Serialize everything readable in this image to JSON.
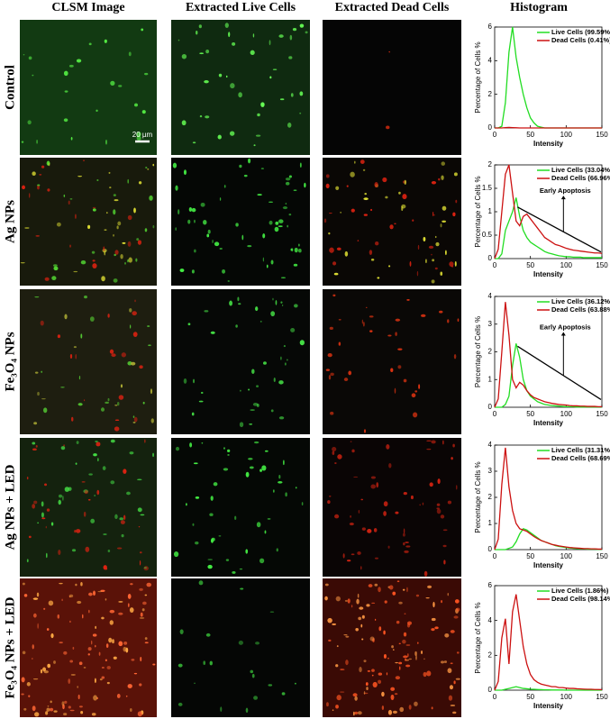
{
  "column_headers": [
    "CLSM Image",
    "Extracted Live Cells",
    "Extracted Dead Cells",
    "Histogram"
  ],
  "row_labels": [
    "Control",
    "Ag NPs",
    "Fe₃O₄ NPs",
    "Ag NPs + LED",
    "Fe₃O₄ NPs + LED"
  ],
  "scale_bar": "20 µm",
  "chart_data": [
    {
      "type": "line",
      "xlabel": "Intensity",
      "ylabel": "Percentage of Cells %",
      "x": [
        0,
        5,
        10,
        15,
        20,
        25,
        30,
        35,
        40,
        45,
        50,
        55,
        60,
        65,
        70,
        75,
        80,
        85,
        90,
        95,
        100,
        105,
        110,
        115,
        120,
        125,
        130,
        135,
        140,
        145,
        150
      ],
      "xlim": [
        0,
        150
      ],
      "xticks": [
        0,
        50,
        100,
        150
      ],
      "ylim": [
        0,
        6
      ],
      "yticks": [
        0,
        2,
        4,
        6
      ],
      "series": [
        {
          "name": "Live Cells (99.59%)",
          "color": "#22dd22",
          "values": [
            0,
            0,
            0.1,
            1.5,
            4.5,
            6,
            4.2,
            3,
            2,
            1.2,
            0.6,
            0.3,
            0.1,
            0.05,
            0,
            0,
            0,
            0,
            0,
            0,
            0,
            0,
            0,
            0,
            0,
            0,
            0,
            0,
            0,
            0,
            0
          ]
        },
        {
          "name": "Dead Cells (0.41%)",
          "color": "#cc1111",
          "values": [
            0,
            0,
            0,
            0.02,
            0.03,
            0.02,
            0.01,
            0,
            0,
            0,
            0,
            0,
            0,
            0,
            0,
            0,
            0,
            0,
            0,
            0,
            0,
            0,
            0,
            0,
            0,
            0,
            0,
            0,
            0,
            0,
            0
          ]
        }
      ]
    },
    {
      "type": "line",
      "xlabel": "Intensity",
      "ylabel": "Percentage of Cells %",
      "annotation": "Early Apoptosis",
      "x": [
        0,
        5,
        10,
        15,
        20,
        25,
        30,
        35,
        40,
        45,
        50,
        55,
        60,
        65,
        70,
        75,
        80,
        85,
        90,
        95,
        100,
        105,
        110,
        115,
        120,
        125,
        130,
        135,
        140,
        145,
        150
      ],
      "xlim": [
        0,
        150
      ],
      "xticks": [
        0,
        50,
        100,
        150
      ],
      "ylim": [
        0,
        2
      ],
      "yticks": [
        0,
        0.5,
        1,
        1.5,
        2
      ],
      "series": [
        {
          "name": "Live Cells (33.04%)",
          "color": "#22dd22",
          "values": [
            0,
            0,
            0.1,
            0.6,
            0.8,
            1.0,
            1.3,
            0.9,
            0.6,
            0.45,
            0.35,
            0.3,
            0.25,
            0.2,
            0.15,
            0.12,
            0.1,
            0.08,
            0.06,
            0.05,
            0.04,
            0.04,
            0.03,
            0.03,
            0.03,
            0.02,
            0.02,
            0.02,
            0.02,
            0.02,
            0.02
          ]
        },
        {
          "name": "Dead Cells (66.96%)",
          "color": "#cc1111",
          "values": [
            0,
            0.2,
            1.0,
            1.8,
            2.0,
            1.4,
            0.8,
            0.7,
            0.9,
            0.95,
            0.85,
            0.75,
            0.65,
            0.55,
            0.45,
            0.4,
            0.35,
            0.3,
            0.28,
            0.25,
            0.22,
            0.2,
            0.18,
            0.17,
            0.16,
            0.15,
            0.14,
            0.13,
            0.12,
            0.12,
            0.11
          ]
        }
      ]
    },
    {
      "type": "line",
      "xlabel": "Intensity",
      "ylabel": "Percentage of Cells %",
      "annotation": "Early Apoptosis",
      "x": [
        0,
        5,
        10,
        15,
        20,
        25,
        30,
        35,
        40,
        45,
        50,
        55,
        60,
        65,
        70,
        75,
        80,
        85,
        90,
        95,
        100,
        105,
        110,
        115,
        120,
        125,
        130,
        135,
        140,
        145,
        150
      ],
      "xlim": [
        0,
        150
      ],
      "xticks": [
        0,
        50,
        100,
        150
      ],
      "ylim": [
        0,
        4
      ],
      "yticks": [
        0,
        1,
        2,
        3,
        4
      ],
      "series": [
        {
          "name": "Live Cells (36.12%)",
          "color": "#22dd22",
          "values": [
            0,
            0,
            0,
            0.1,
            0.4,
            1.5,
            2.3,
            1.8,
            1.0,
            0.6,
            0.4,
            0.3,
            0.2,
            0.15,
            0.1,
            0.08,
            0.06,
            0.05,
            0.04,
            0.03,
            0.02,
            0.02,
            0.02,
            0.01,
            0.01,
            0.01,
            0.01,
            0.01,
            0.01,
            0.01,
            0.01
          ]
        },
        {
          "name": "Dead Cells (63.88%)",
          "color": "#cc1111",
          "values": [
            0,
            0.3,
            2.0,
            3.8,
            2.6,
            1.0,
            0.7,
            0.9,
            0.8,
            0.6,
            0.45,
            0.35,
            0.3,
            0.25,
            0.2,
            0.17,
            0.14,
            0.12,
            0.1,
            0.09,
            0.08,
            0.06,
            0.05,
            0.05,
            0.04,
            0.04,
            0.03,
            0.03,
            0.03,
            0.02,
            0.02
          ]
        }
      ]
    },
    {
      "type": "line",
      "xlabel": "Intensity",
      "ylabel": "Percentage of Cells %",
      "x": [
        0,
        5,
        10,
        15,
        20,
        25,
        30,
        35,
        40,
        45,
        50,
        55,
        60,
        65,
        70,
        75,
        80,
        85,
        90,
        95,
        100,
        105,
        110,
        115,
        120,
        125,
        130,
        135,
        140,
        145,
        150
      ],
      "xlim": [
        0,
        150
      ],
      "xticks": [
        0,
        50,
        100,
        150
      ],
      "ylim": [
        0,
        4
      ],
      "yticks": [
        0,
        1,
        2,
        3,
        4
      ],
      "series": [
        {
          "name": "Live Cells (31.31%)",
          "color": "#22dd22",
          "values": [
            0,
            0,
            0,
            0,
            0.05,
            0.1,
            0.3,
            0.6,
            0.8,
            0.75,
            0.65,
            0.55,
            0.45,
            0.35,
            0.3,
            0.25,
            0.2,
            0.15,
            0.12,
            0.1,
            0.08,
            0.06,
            0.05,
            0.04,
            0.03,
            0.03,
            0.02,
            0.02,
            0.02,
            0.01,
            0.01
          ]
        },
        {
          "name": "Dead Cells (68.69%)",
          "color": "#cc1111",
          "values": [
            0,
            0.4,
            2.5,
            3.9,
            2.4,
            1.5,
            1.0,
            0.8,
            0.75,
            0.7,
            0.6,
            0.5,
            0.42,
            0.35,
            0.3,
            0.25,
            0.2,
            0.17,
            0.14,
            0.12,
            0.1,
            0.08,
            0.07,
            0.06,
            0.05,
            0.04,
            0.04,
            0.03,
            0.03,
            0.02,
            0.02
          ]
        }
      ]
    },
    {
      "type": "line",
      "xlabel": "Intensity",
      "ylabel": "Percentage of Cells %",
      "x": [
        0,
        5,
        10,
        15,
        20,
        25,
        30,
        35,
        40,
        45,
        50,
        55,
        60,
        65,
        70,
        75,
        80,
        85,
        90,
        95,
        100,
        105,
        110,
        115,
        120,
        125,
        130,
        135,
        140,
        145,
        150
      ],
      "xlim": [
        0,
        150
      ],
      "xticks": [
        0,
        50,
        100,
        150
      ],
      "ylim": [
        0,
        6
      ],
      "yticks": [
        0,
        2,
        4,
        6
      ],
      "series": [
        {
          "name": "Live Cells (1.86%)",
          "color": "#22dd22",
          "values": [
            0,
            0,
            0,
            0.05,
            0.1,
            0.15,
            0.2,
            0.15,
            0.1,
            0.08,
            0.06,
            0.05,
            0.04,
            0.03,
            0.02,
            0.02,
            0.01,
            0.01,
            0.01,
            0.01,
            0,
            0,
            0,
            0,
            0,
            0,
            0,
            0,
            0,
            0,
            0
          ]
        },
        {
          "name": "Dead Cells (98.14%)",
          "color": "#cc1111",
          "values": [
            0,
            0.5,
            3.0,
            4.1,
            1.5,
            4.5,
            5.5,
            4.0,
            2.5,
            1.5,
            0.9,
            0.6,
            0.45,
            0.35,
            0.3,
            0.25,
            0.2,
            0.2,
            0.15,
            0.15,
            0.12,
            0.1,
            0.1,
            0.08,
            0.07,
            0.06,
            0.05,
            0.05,
            0.04,
            0.04,
            0.03
          ]
        }
      ]
    }
  ]
}
